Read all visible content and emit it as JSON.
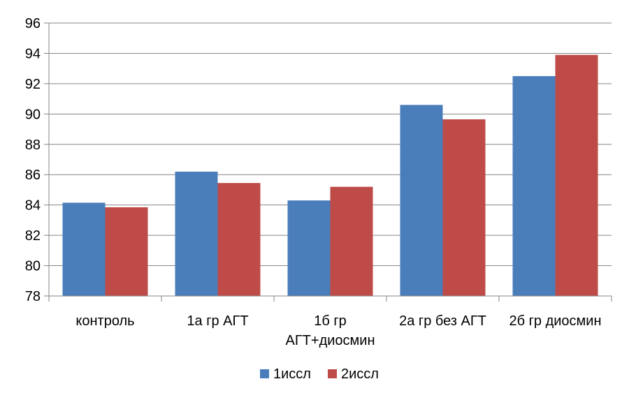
{
  "chart_data": {
    "type": "bar",
    "categories": [
      [
        "контроль"
      ],
      [
        "1а гр АГТ"
      ],
      [
        "1б гр",
        "АГТ+диосмин"
      ],
      [
        "2а гр без АГТ"
      ],
      [
        "2б гр диосмин"
      ]
    ],
    "series": [
      {
        "name": "1иссл",
        "color": "#4a7ebb",
        "values": [
          84.15,
          86.2,
          84.3,
          90.6,
          92.5
        ]
      },
      {
        "name": "2иссл",
        "color": "#be4b48",
        "values": [
          83.85,
          85.45,
          85.2,
          89.65,
          93.9
        ]
      }
    ],
    "ylim": [
      78,
      96
    ],
    "yticks": [
      78,
      80,
      82,
      84,
      86,
      88,
      90,
      92,
      94,
      96
    ],
    "grid": true,
    "legend_position": "bottom",
    "title": "",
    "xlabel": "",
    "ylabel": ""
  }
}
